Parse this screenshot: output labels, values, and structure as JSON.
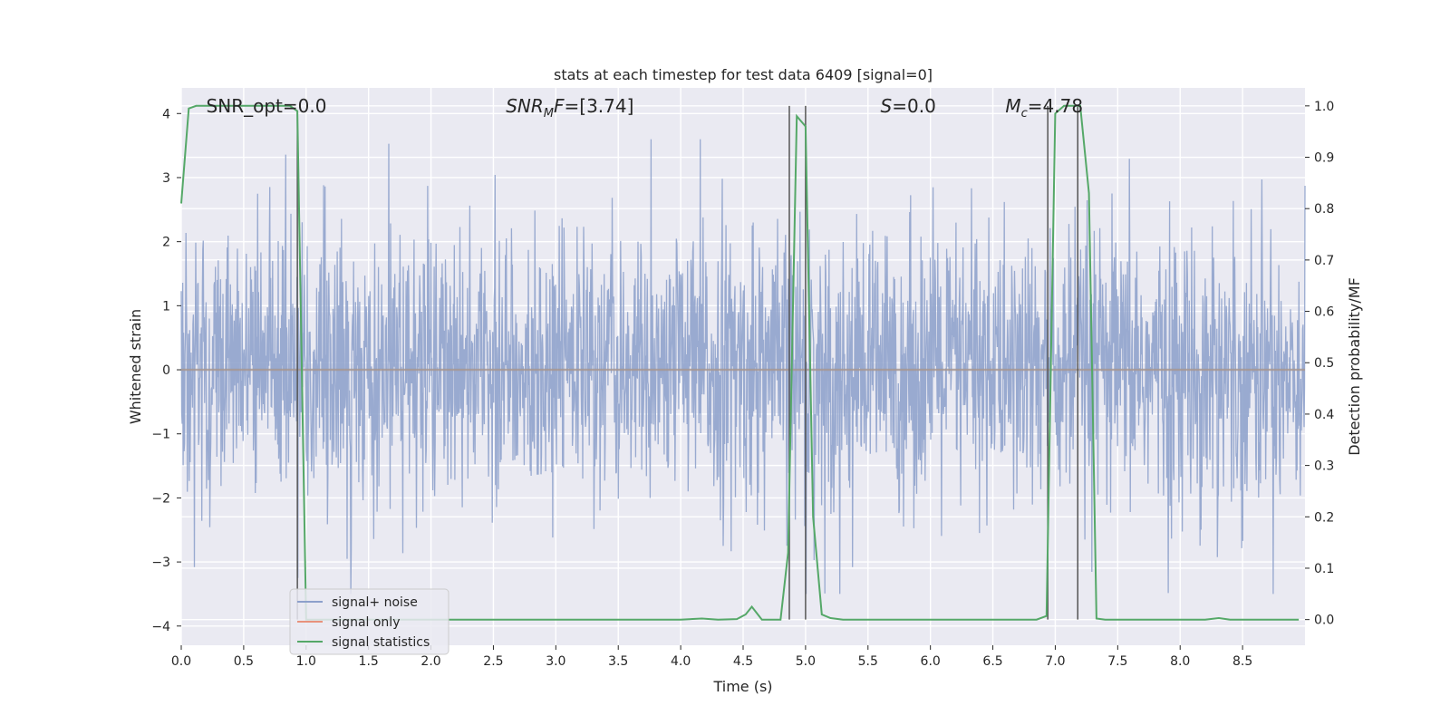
{
  "chart_data": {
    "type": "line",
    "title": "stats at each timestep for test data 6409 [signal=0]",
    "xlabel": "Time (s)",
    "ylabel": "Whitened strain",
    "y2label": "Detection probability/MF",
    "xlim": [
      0,
      9
    ],
    "ylim": [
      -4.3,
      4.4
    ],
    "y2lim": [
      -0.05,
      1.035
    ],
    "xticks": [
      0.0,
      0.5,
      1.0,
      1.5,
      2.0,
      2.5,
      3.0,
      3.5,
      4.0,
      4.5,
      5.0,
      5.5,
      6.0,
      6.5,
      7.0,
      7.5,
      8.0,
      8.5
    ],
    "xtick_labels": [
      "0.0",
      "0.5",
      "1.0",
      "1.5",
      "2.0",
      "2.5",
      "3.0",
      "3.5",
      "4.0",
      "4.5",
      "5.0",
      "5.5",
      "6.0",
      "6.5",
      "7.0",
      "7.5",
      "8.0",
      "8.5"
    ],
    "yticks": [
      -4,
      -3,
      -2,
      -1,
      0,
      1,
      2,
      3,
      4
    ],
    "ytick_labels": [
      "−4",
      "−3",
      "−2",
      "−1",
      "0",
      "1",
      "2",
      "3",
      "4"
    ],
    "y2ticks": [
      0.0,
      0.1,
      0.2,
      0.3,
      0.4,
      0.5,
      0.6,
      0.7,
      0.8,
      0.9,
      1.0
    ],
    "y2tick_labels": [
      "0.0",
      "0.1",
      "0.2",
      "0.3",
      "0.4",
      "0.5",
      "0.6",
      "0.7",
      "0.8",
      "0.9",
      "1.0"
    ],
    "grid": true,
    "legend_position": "lower-left",
    "annotations": [
      {
        "prefix": "SNR_opt=0.0",
        "sub": "",
        "suffix": "",
        "x": 0.2
      },
      {
        "prefix": "SNR",
        "sub": "M",
        "suffix": "F=[3.74]",
        "x": 2.6,
        "italic": true
      },
      {
        "prefix": "S",
        "sub": "",
        "suffix": "=0.0",
        "x": 5.6,
        "italic_prefix": true
      },
      {
        "prefix": "M",
        "sub": "c",
        "suffix": "=4.78",
        "x": 6.6,
        "italic_prefix": true
      }
    ],
    "series": [
      {
        "name": "signal+ noise",
        "color": "#8da0cb",
        "description": "whitened strain noise, roughly zero mean, spiky between about -3.5 and 3.6",
        "amplitude_range": [
          -3.5,
          3.6
        ]
      },
      {
        "name": "signal only",
        "color": "#e8927c",
        "values": "zero"
      },
      {
        "name": "signal statistics",
        "color": "#55a868",
        "axis": "right",
        "x": [
          0.0,
          0.06,
          0.12,
          0.2,
          0.4,
          0.6,
          0.8,
          0.87,
          0.93,
          1.0,
          1.1,
          1.5,
          2.0,
          2.5,
          3.0,
          3.5,
          4.0,
          4.17,
          4.3,
          4.45,
          4.52,
          4.57,
          4.65,
          4.8,
          4.86,
          4.93,
          5.0,
          5.06,
          5.13,
          5.2,
          5.3,
          5.5,
          6.0,
          6.5,
          6.85,
          6.93,
          7.0,
          7.07,
          7.15,
          7.2,
          7.27,
          7.33,
          7.4,
          7.8,
          8.2,
          8.31,
          8.4,
          8.8,
          8.95
        ],
        "values": [
          0.81,
          0.995,
          1.0,
          1.0,
          1.0,
          1.0,
          1.0,
          1.0,
          0.99,
          0.0,
          0.0,
          0.0,
          0.0,
          0.0,
          0.0,
          0.0,
          0.0,
          0.002,
          0.0,
          0.001,
          0.01,
          0.025,
          0.0,
          0.0,
          0.13,
          0.98,
          0.96,
          0.2,
          0.01,
          0.003,
          0.0,
          0.0,
          0.0,
          0.0,
          0.0,
          0.007,
          0.985,
          1.0,
          1.0,
          1.0,
          0.83,
          0.002,
          0.0,
          0.0,
          0.0,
          0.003,
          0.0,
          0.0,
          0.0
        ]
      }
    ],
    "vertical_markers_y2": [
      {
        "x": 0.93,
        "y": [
          0.0,
          0.99
        ]
      },
      {
        "x": 4.87,
        "y": [
          0.0,
          1.0
        ]
      },
      {
        "x": 5.0,
        "y": [
          0.0,
          1.0
        ]
      },
      {
        "x": 6.94,
        "y": [
          0.0,
          1.0
        ]
      },
      {
        "x": 7.18,
        "y": [
          0.0,
          1.0
        ]
      }
    ]
  }
}
